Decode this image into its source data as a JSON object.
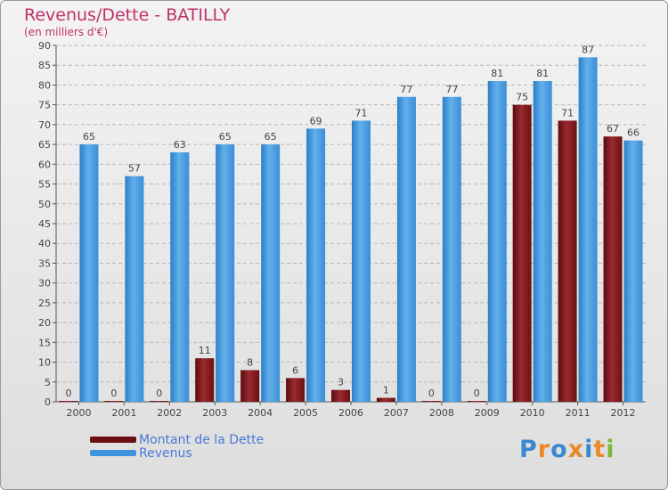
{
  "header": {
    "title": "Revenus/Dette - BATILLY",
    "subtitle": "(en milliers d'€)"
  },
  "chart_data": {
    "type": "bar",
    "title": "Revenus/Dette - BATILLY",
    "ylabel": "(en milliers d'€)",
    "xlabel": "",
    "ylim": [
      0,
      90
    ],
    "ytick_step": 5,
    "grid": true,
    "legend_position": "bottom-left",
    "categories": [
      "2000",
      "2001",
      "2002",
      "2003",
      "2004",
      "2005",
      "2006",
      "2007",
      "2008",
      "2009",
      "2010",
      "2011",
      "2012"
    ],
    "series": [
      {
        "name": "Montant de la Dette",
        "color": "#7a1418",
        "values": [
          0,
          0,
          0,
          11,
          8,
          6,
          3,
          1,
          0,
          0,
          75,
          71,
          67
        ]
      },
      {
        "name": "Revenus",
        "color": "#3f95dd",
        "values": [
          65,
          57,
          63,
          65,
          65,
          69,
          71,
          77,
          77,
          81,
          81,
          87,
          66
        ]
      }
    ]
  },
  "legend": {
    "items": [
      {
        "label": "Montant de la Dette",
        "color": "#6a0e12"
      },
      {
        "label": "Revenus",
        "color": "#3f95dd"
      }
    ]
  },
  "logo": {
    "letters": [
      "P",
      "r",
      "o",
      "x",
      "i",
      "t",
      "i"
    ],
    "colors": [
      "#3a88d0",
      "#e8892a",
      "#3a88d0",
      "#e8892a",
      "#3a88d0",
      "#e8892a",
      "#78b83a"
    ]
  }
}
